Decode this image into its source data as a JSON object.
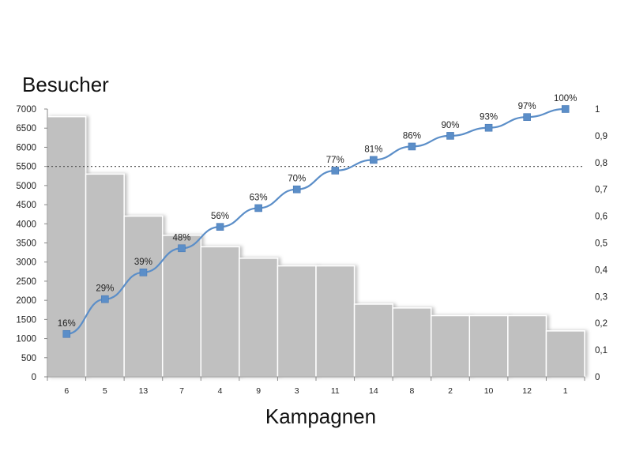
{
  "chart_data": {
    "type": "bar",
    "ylabel": "Besucher",
    "xlabel": "Kampagnen",
    "categories": [
      "6",
      "5",
      "13",
      "7",
      "4",
      "9",
      "3",
      "11",
      "14",
      "8",
      "2",
      "10",
      "12",
      "1"
    ],
    "series": [
      {
        "type": "bar",
        "axis": "left",
        "values": [
          6800,
          5300,
          4200,
          3700,
          3400,
          3100,
          2900,
          2900,
          1900,
          1800,
          1600,
          1600,
          1600,
          1200
        ],
        "color": "#c0c0c0"
      },
      {
        "type": "line",
        "axis": "right",
        "values": [
          0.16,
          0.29,
          0.39,
          0.48,
          0.56,
          0.63,
          0.7,
          0.77,
          0.81,
          0.86,
          0.9,
          0.93,
          0.97,
          1.0
        ],
        "labels": [
          "16%",
          "29%",
          "39%",
          "48%",
          "56%",
          "63%",
          "70%",
          "77%",
          "81%",
          "86%",
          "90%",
          "93%",
          "97%",
          "100%"
        ],
        "color": "#5b8ec8",
        "marker": "square"
      }
    ],
    "reference_line": {
      "axis": "left",
      "value": 5500,
      "style": "dotted"
    },
    "left_axis": {
      "ylim": [
        0,
        7000
      ],
      "ticks": [
        "0",
        "500",
        "1000",
        "1500",
        "2000",
        "2500",
        "3000",
        "3500",
        "4000",
        "4500",
        "5000",
        "5500",
        "6000",
        "6500",
        "7000"
      ]
    },
    "right_axis": {
      "ylim": [
        0,
        1
      ],
      "ticks": [
        "0",
        "0,1",
        "0,2",
        "0,3",
        "0,4",
        "0,5",
        "0,6",
        "0,7",
        "0,8",
        "0,9",
        "1"
      ]
    },
    "grid": false,
    "legend": "none"
  }
}
